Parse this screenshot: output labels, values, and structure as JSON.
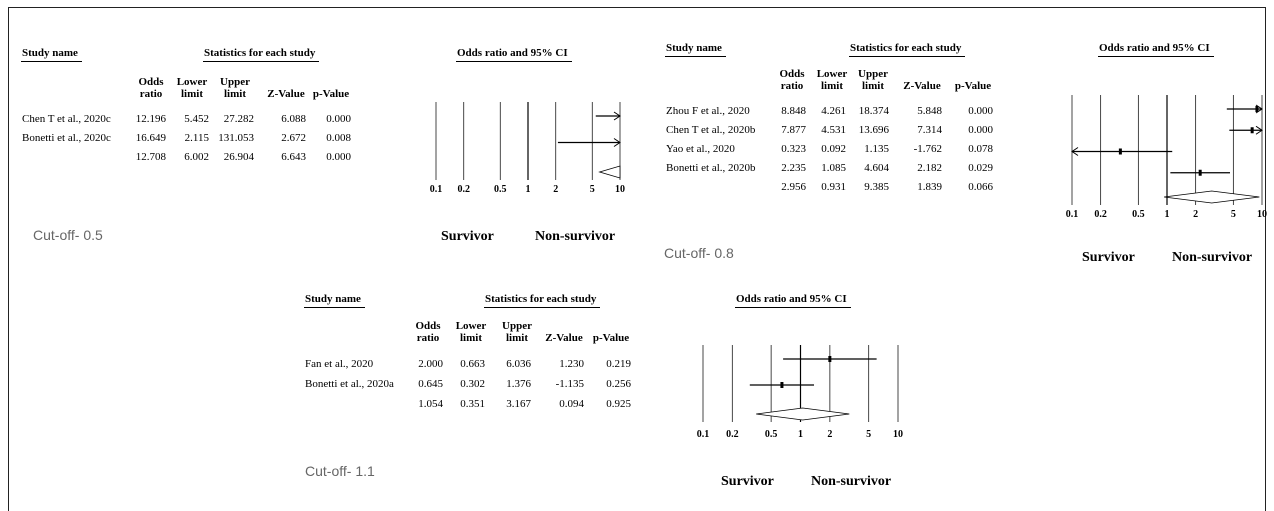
{
  "panel_labels": {
    "study_name": "Study name",
    "statistics": "Statistics for each study",
    "plot_header": "Odds ratio and 95% CI",
    "columns": [
      "Odds\nratio",
      "Lower\nlimit",
      "Upper\nlimit",
      "Z-Value",
      "p-Value"
    ],
    "favours_left": "Survivor",
    "favours_right": "Non-survivor"
  },
  "chart_data": [
    {
      "type": "forest",
      "cutoff_label": "Cut-off- 0.5",
      "xscale": "log",
      "xlim": [
        0.1,
        10
      ],
      "xticks": [
        "0.1",
        "0.2",
        "0.5",
        "1",
        "2",
        "5",
        "10"
      ],
      "studies": [
        {
          "name": "Chen T et al., 2020c",
          "or": "12.196",
          "lower": "5.452",
          "upper": "27.282",
          "z": "6.088",
          "p": "0.000",
          "or_v": 12.196,
          "lower_v": 5.452,
          "upper_v": 27.282
        },
        {
          "name": "Bonetti et al., 2020c",
          "or": "16.649",
          "lower": "2.115",
          "upper": "131.053",
          "z": "2.672",
          "p": "0.008",
          "or_v": 16.649,
          "lower_v": 2.115,
          "upper_v": 131.053
        }
      ],
      "pooled": {
        "or": "12.708",
        "lower": "6.002",
        "upper": "26.904",
        "z": "6.643",
        "p": "0.000",
        "or_v": 12.708,
        "lower_v": 6.002,
        "upper_v": 26.904
      }
    },
    {
      "type": "forest",
      "cutoff_label": "Cut-off- 0.8",
      "xscale": "log",
      "xlim": [
        0.1,
        10
      ],
      "xticks": [
        "0.1",
        "0.2",
        "0.5",
        "1",
        "2",
        "5",
        "10"
      ],
      "studies": [
        {
          "name": "Zhou F et al., 2020",
          "or": "8.848",
          "lower": "4.261",
          "upper": "18.374",
          "z": "5.848",
          "p": "0.000",
          "or_v": 8.848,
          "lower_v": 4.261,
          "upper_v": 18.374
        },
        {
          "name": "Chen T et al., 2020b",
          "or": "7.877",
          "lower": "4.531",
          "upper": "13.696",
          "z": "7.314",
          "p": "0.000",
          "or_v": 7.877,
          "lower_v": 4.531,
          "upper_v": 13.696
        },
        {
          "name": "Yao et al., 2020",
          "or": "0.323",
          "lower": "0.092",
          "upper": "1.135",
          "z": "-1.762",
          "p": "0.078",
          "or_v": 0.323,
          "lower_v": 0.092,
          "upper_v": 1.135
        },
        {
          "name": "Bonetti et al., 2020b",
          "or": "2.235",
          "lower": "1.085",
          "upper": "4.604",
          "z": "2.182",
          "p": "0.029",
          "or_v": 2.235,
          "lower_v": 1.085,
          "upper_v": 4.604
        }
      ],
      "pooled": {
        "or": "2.956",
        "lower": "0.931",
        "upper": "9.385",
        "z": "1.839",
        "p": "0.066",
        "or_v": 2.956,
        "lower_v": 0.931,
        "upper_v": 9.385
      }
    },
    {
      "type": "forest",
      "cutoff_label": "Cut-off- 1.1",
      "xscale": "log",
      "xlim": [
        0.1,
        10
      ],
      "xticks": [
        "0.1",
        "0.2",
        "0.5",
        "1",
        "2",
        "5",
        "10"
      ],
      "studies": [
        {
          "name": "Fan et al., 2020",
          "or": "2.000",
          "lower": "0.663",
          "upper": "6.036",
          "z": "1.230",
          "p": "0.219",
          "or_v": 2.0,
          "lower_v": 0.663,
          "upper_v": 6.036
        },
        {
          "name": "Bonetti et al., 2020a",
          "or": "0.645",
          "lower": "0.302",
          "upper": "1.376",
          "z": "-1.135",
          "p": "0.256",
          "or_v": 0.645,
          "lower_v": 0.302,
          "upper_v": 1.376
        }
      ],
      "pooled": {
        "or": "1.054",
        "lower": "0.351",
        "upper": "3.167",
        "z": "0.094",
        "p": "0.925",
        "or_v": 1.054,
        "lower_v": 0.351,
        "upper_v": 3.167
      }
    }
  ]
}
